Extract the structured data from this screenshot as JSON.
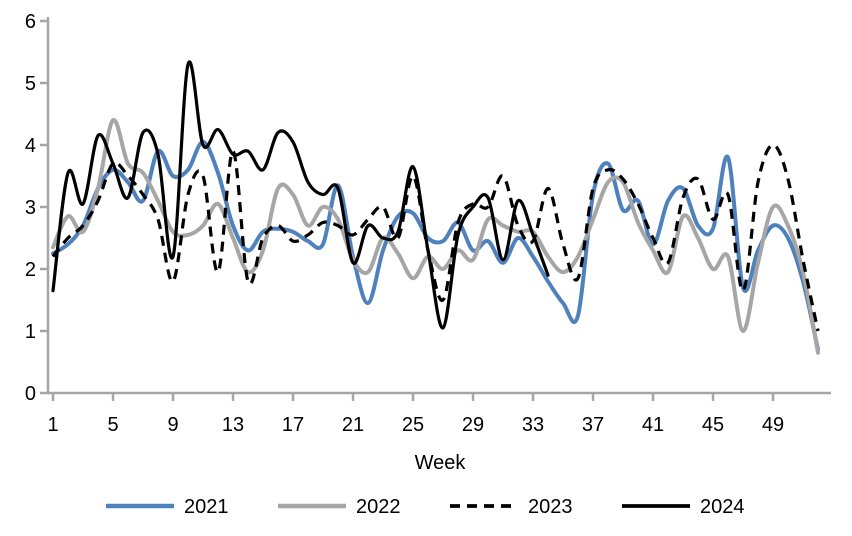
{
  "chart_data": {
    "type": "line",
    "title": "",
    "xlabel": "Week",
    "ylabel": "",
    "xlim": [
      1,
      52
    ],
    "ylim": [
      0,
      6
    ],
    "y_ticks": [
      0,
      1,
      2,
      3,
      4,
      5,
      6
    ],
    "x_ticks": [
      1,
      5,
      9,
      13,
      17,
      21,
      25,
      29,
      33,
      37,
      41,
      45,
      49
    ],
    "grid": false,
    "legend_position": "bottom",
    "axis_color": "#a6a6a6",
    "text_color": "#000000",
    "series": [
      {
        "name": "2021",
        "color": "#4f81bd",
        "style": "solid",
        "width": 4,
        "start_week": 1,
        "values": [
          2.25,
          2.4,
          2.7,
          3.3,
          3.6,
          3.4,
          3.1,
          3.9,
          3.5,
          3.6,
          4.05,
          3.55,
          2.7,
          2.3,
          2.6,
          2.65,
          2.6,
          2.45,
          2.4,
          3.35,
          2.2,
          1.45,
          2.3,
          2.85,
          2.9,
          2.5,
          2.45,
          2.75,
          2.3,
          2.45,
          2.1,
          2.5,
          2.2,
          1.8,
          1.45,
          1.25,
          3.2,
          3.7,
          2.95,
          3.1,
          2.4,
          3.1,
          3.3,
          2.7,
          2.65,
          3.8,
          1.7,
          2.3,
          2.7,
          2.5,
          1.8,
          0.7
        ]
      },
      {
        "name": "2022",
        "color": "#a6a6a6",
        "style": "solid",
        "width": 4,
        "start_week": 1,
        "values": [
          2.35,
          2.85,
          2.6,
          3.3,
          4.4,
          3.7,
          3.55,
          3.1,
          2.6,
          2.55,
          2.7,
          3.05,
          2.5,
          1.95,
          2.3,
          3.3,
          3.2,
          2.7,
          3.0,
          2.8,
          2.15,
          1.95,
          2.5,
          2.25,
          1.85,
          2.2,
          2.0,
          2.3,
          2.15,
          2.8,
          2.7,
          2.6,
          2.6,
          2.2,
          1.95,
          2.2,
          2.8,
          3.4,
          3.4,
          2.75,
          2.3,
          1.95,
          2.85,
          2.5,
          2.0,
          2.2,
          1.0,
          2.1,
          3.0,
          2.7,
          1.95,
          0.65
        ]
      },
      {
        "name": "2023",
        "color": "#000000",
        "style": "dashed",
        "width": 3.2,
        "start_week": 1,
        "values": [
          2.2,
          2.5,
          2.7,
          3.1,
          3.7,
          3.5,
          3.2,
          2.8,
          1.8,
          3.2,
          3.5,
          1.95,
          3.9,
          1.8,
          2.5,
          2.7,
          2.45,
          2.55,
          2.75,
          2.7,
          2.55,
          2.8,
          3.0,
          2.5,
          3.5,
          2.3,
          1.5,
          2.75,
          3.05,
          3.0,
          3.5,
          2.7,
          2.45,
          3.3,
          2.4,
          1.85,
          3.3,
          3.6,
          3.45,
          3.05,
          2.5,
          2.1,
          3.15,
          3.45,
          2.8,
          3.2,
          1.65,
          3.4,
          4.0,
          3.45,
          2.15,
          1.0
        ]
      },
      {
        "name": "2024",
        "color": "#000000",
        "style": "solid",
        "width": 3.2,
        "start_week": 1,
        "values": [
          1.65,
          3.55,
          3.05,
          4.15,
          3.7,
          3.15,
          4.2,
          3.85,
          2.2,
          5.3,
          4.0,
          4.25,
          3.85,
          3.9,
          3.6,
          4.2,
          4.05,
          3.4,
          3.2,
          3.3,
          2.1,
          2.7,
          2.5,
          2.6,
          3.65,
          2.3,
          1.05,
          2.55,
          3.0,
          3.15,
          2.15,
          3.1,
          2.55,
          1.9
        ]
      }
    ]
  },
  "legend": {
    "items": [
      {
        "label": "2021"
      },
      {
        "label": "2022"
      },
      {
        "label": "2023"
      },
      {
        "label": "2024"
      }
    ]
  }
}
